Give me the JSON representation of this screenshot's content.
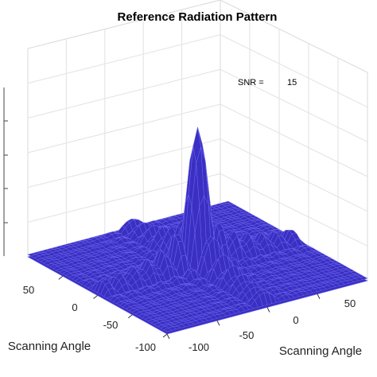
{
  "chart_data": {
    "type": "surface",
    "title": "Reference Radiation Pattern",
    "xlabel": "Scanning Angle",
    "ylabel": "Scanning Angle",
    "zlabel": "",
    "x_ticks": [
      "-100",
      "-50",
      "0",
      "50"
    ],
    "y_ticks": [
      "-100",
      "-50",
      "0",
      "50"
    ],
    "xlim": [
      -100,
      100
    ],
    "ylim": [
      -100,
      100
    ],
    "grid": true,
    "surface_color": "#3a2fc2",
    "edge_color": "#6f6bf0",
    "peak_location": [
      0,
      0
    ],
    "annotation": {
      "label": "SNR =",
      "value": "15"
    }
  }
}
